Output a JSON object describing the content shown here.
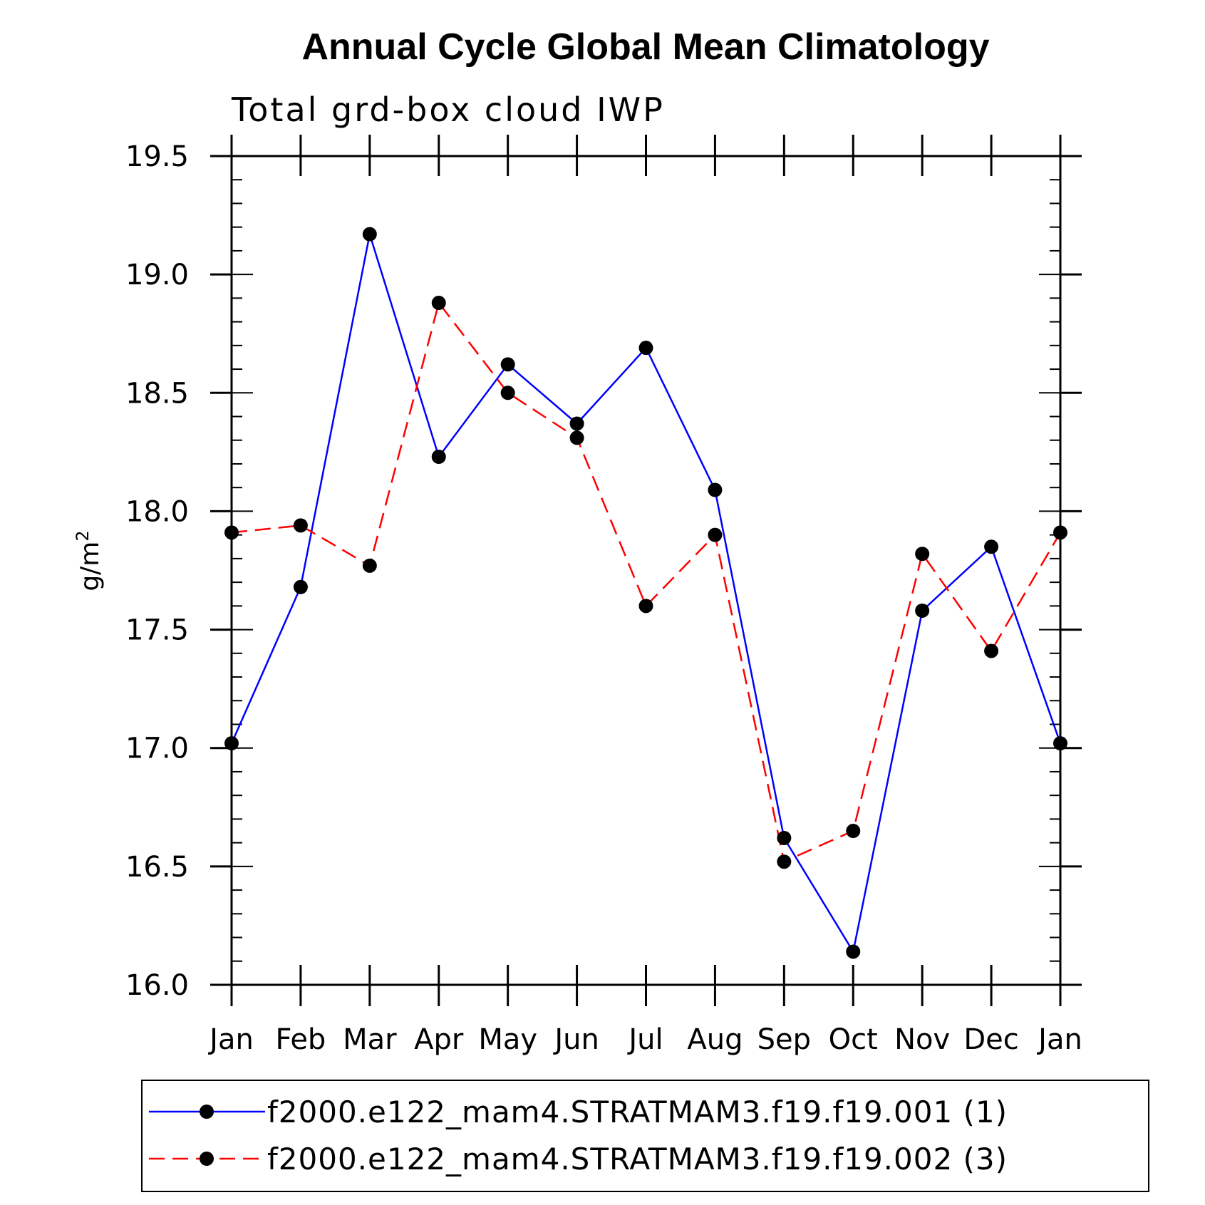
{
  "chart_data": {
    "type": "line",
    "title": "Annual Cycle Global Mean Climatology",
    "subtitle": "Total grd-box cloud IWP",
    "xlabel": "",
    "ylabel": "g/m",
    "ylabel_superscript": "2",
    "categories": [
      "Jan",
      "Feb",
      "Mar",
      "Apr",
      "May",
      "Jun",
      "Jul",
      "Aug",
      "Sep",
      "Oct",
      "Nov",
      "Dec",
      "Jan"
    ],
    "ylim": [
      16.0,
      19.5
    ],
    "yticks": [
      "16.0",
      "16.5",
      "17.0",
      "17.5",
      "18.0",
      "18.5",
      "19.0",
      "19.5"
    ],
    "ytick_values": [
      16.0,
      16.5,
      17.0,
      17.5,
      18.0,
      18.5,
      19.0,
      19.5
    ],
    "grid": false,
    "legend_position": "bottom",
    "series": [
      {
        "name": "f2000.e122_mam4.STRATMAM3.f19.f19.001 (1)",
        "color": "#0000ff",
        "dash": "solid",
        "marker": "filled-circle",
        "values": [
          17.02,
          17.68,
          19.17,
          18.23,
          18.62,
          18.37,
          18.69,
          18.09,
          16.62,
          16.14,
          17.58,
          17.85,
          17.02
        ]
      },
      {
        "name": "f2000.e122_mam4.STRATMAM3.f19.f19.002 (3)",
        "color": "#ff0000",
        "dash": "dashed",
        "marker": "filled-circle",
        "values": [
          17.91,
          17.94,
          17.77,
          18.88,
          18.5,
          18.31,
          17.6,
          17.9,
          16.52,
          16.65,
          17.82,
          17.41,
          17.91
        ]
      }
    ]
  }
}
